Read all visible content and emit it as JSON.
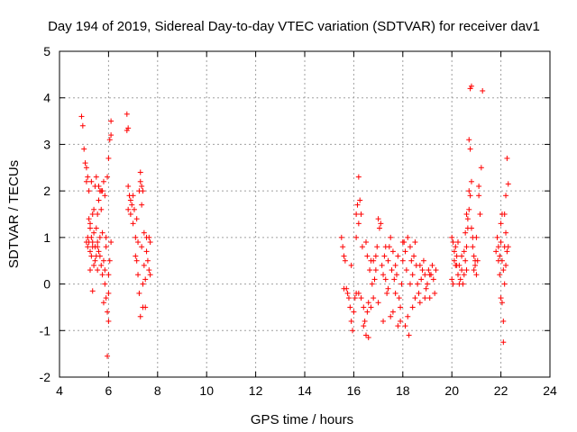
{
  "chart_data": {
    "type": "scatter",
    "title": "Day 194 of 2019, Sidereal Day-to-day VTEC variation (SDTVAR) for receiver dav1",
    "xlabel": "GPS time / hours",
    "ylabel": "SDTVAR / TECUs",
    "xlim": [
      4,
      24
    ],
    "ylim": [
      -2,
      5
    ],
    "x_ticks": [
      4,
      6,
      8,
      10,
      12,
      14,
      16,
      18,
      20,
      22,
      24
    ],
    "y_ticks": [
      -2,
      -1,
      0,
      1,
      2,
      3,
      4,
      5
    ],
    "grid": true,
    "marker": "+",
    "color": "#ff0000",
    "series": [
      {
        "name": "SDTVAR",
        "points": [
          [
            4.9,
            3.6
          ],
          [
            4.95,
            3.4
          ],
          [
            5.0,
            2.9
          ],
          [
            5.05,
            2.6
          ],
          [
            5.1,
            2.5
          ],
          [
            5.1,
            2.2
          ],
          [
            5.15,
            2.3
          ],
          [
            5.2,
            2.0
          ],
          [
            5.2,
            1.4
          ],
          [
            5.25,
            1.3
          ],
          [
            5.1,
            0.9
          ],
          [
            5.15,
            0.8
          ],
          [
            5.2,
            0.9
          ],
          [
            5.25,
            0.7
          ],
          [
            5.3,
            1.0
          ],
          [
            5.3,
            0.6
          ],
          [
            5.35,
            0.9
          ],
          [
            5.35,
            1.5
          ],
          [
            5.4,
            0.4
          ],
          [
            5.4,
            1.1
          ],
          [
            5.45,
            2.1
          ],
          [
            5.45,
            0.8
          ],
          [
            5.5,
            0.6
          ],
          [
            5.5,
            1.2
          ],
          [
            5.55,
            0.3
          ],
          [
            5.55,
            0.9
          ],
          [
            5.6,
            1.8
          ],
          [
            5.6,
            0.7
          ],
          [
            5.65,
            1.0
          ],
          [
            5.65,
            2.0
          ],
          [
            5.7,
            0.4
          ],
          [
            5.7,
            1.6
          ],
          [
            5.75,
            0.2
          ],
          [
            5.8,
            0.5
          ],
          [
            5.8,
            2.2
          ],
          [
            5.85,
            0.0
          ],
          [
            5.85,
            1.9
          ],
          [
            5.9,
            -0.3
          ],
          [
            5.9,
            0.8
          ],
          [
            5.95,
            -0.6
          ],
          [
            5.95,
            2.3
          ],
          [
            6.0,
            -0.8
          ],
          [
            6.0,
            0.2
          ],
          [
            6.05,
            0.5
          ],
          [
            6.05,
            3.1
          ],
          [
            6.1,
            3.2
          ],
          [
            6.1,
            3.5
          ],
          [
            6.1,
            0.9
          ],
          [
            6.0,
            2.7
          ],
          [
            5.4,
            1.6
          ],
          [
            5.3,
            2.2
          ],
          [
            5.5,
            2.3
          ],
          [
            5.6,
            2.1
          ],
          [
            5.7,
            2.0
          ],
          [
            5.25,
            0.3
          ],
          [
            5.35,
            -0.15
          ],
          [
            5.45,
            0.5
          ],
          [
            5.55,
            1.5
          ],
          [
            5.75,
            2.0
          ],
          [
            5.95,
            -1.55
          ],
          [
            5.15,
            1.0
          ],
          [
            5.25,
            1.2
          ],
          [
            5.35,
            0.8
          ],
          [
            5.55,
            0.8
          ],
          [
            5.65,
            0.6
          ],
          [
            5.75,
            1.1
          ],
          [
            5.85,
            0.3
          ],
          [
            5.9,
            1.0
          ],
          [
            6.0,
            -0.2
          ],
          [
            5.8,
            -0.4
          ],
          [
            6.75,
            3.65
          ],
          [
            6.8,
            3.35
          ],
          [
            6.75,
            3.3
          ],
          [
            6.8,
            2.1
          ],
          [
            6.85,
            1.9
          ],
          [
            6.8,
            1.6
          ],
          [
            6.9,
            1.8
          ],
          [
            6.9,
            1.5
          ],
          [
            6.95,
            1.7
          ],
          [
            7.0,
            1.9
          ],
          [
            7.0,
            1.3
          ],
          [
            7.05,
            1.6
          ],
          [
            7.1,
            1.0
          ],
          [
            7.1,
            0.6
          ],
          [
            7.15,
            0.5
          ],
          [
            7.15,
            1.4
          ],
          [
            7.2,
            0.9
          ],
          [
            7.2,
            0.2
          ],
          [
            7.25,
            2.0
          ],
          [
            7.25,
            -0.2
          ],
          [
            7.3,
            2.2
          ],
          [
            7.3,
            2.4
          ],
          [
            7.35,
            2.1
          ],
          [
            7.35,
            0.8
          ],
          [
            7.4,
            -0.5
          ],
          [
            7.4,
            0.0
          ],
          [
            7.45,
            1.1
          ],
          [
            7.45,
            0.4
          ],
          [
            7.5,
            0.1
          ],
          [
            7.5,
            -0.5
          ],
          [
            7.55,
            0.7
          ],
          [
            7.55,
            1.0
          ],
          [
            7.6,
            0.5
          ],
          [
            7.65,
            0.3
          ],
          [
            7.65,
            1.0
          ],
          [
            7.7,
            0.9
          ],
          [
            7.7,
            0.2
          ],
          [
            7.3,
            -0.7
          ],
          [
            7.4,
            2.0
          ],
          [
            7.35,
            1.7
          ],
          [
            15.5,
            1.0
          ],
          [
            15.55,
            0.8
          ],
          [
            15.6,
            0.6
          ],
          [
            15.65,
            0.5
          ],
          [
            15.6,
            -0.1
          ],
          [
            15.7,
            -0.1
          ],
          [
            15.75,
            -0.2
          ],
          [
            15.8,
            -0.3
          ],
          [
            15.85,
            -0.5
          ],
          [
            15.9,
            -0.8
          ],
          [
            15.95,
            -1.0
          ],
          [
            16.0,
            -0.6
          ],
          [
            16.05,
            -0.3
          ],
          [
            15.9,
            0.4
          ],
          [
            16.1,
            1.0
          ],
          [
            16.1,
            1.5
          ],
          [
            16.15,
            1.7
          ],
          [
            16.2,
            1.3
          ],
          [
            16.2,
            2.3
          ],
          [
            16.25,
            1.8
          ],
          [
            16.3,
            1.5
          ],
          [
            16.35,
            0.8
          ],
          [
            16.1,
            -0.2
          ],
          [
            16.2,
            -0.2
          ],
          [
            16.3,
            -0.3
          ],
          [
            16.4,
            -0.5
          ],
          [
            16.45,
            -0.8
          ],
          [
            16.5,
            -1.1
          ],
          [
            16.55,
            -0.6
          ],
          [
            16.6,
            -0.4
          ],
          [
            16.65,
            0.3
          ],
          [
            16.7,
            0.5
          ],
          [
            16.6,
            -1.15
          ],
          [
            16.5,
            0.9
          ],
          [
            16.55,
            0.6
          ],
          [
            16.75,
            0.0
          ],
          [
            16.8,
            -0.3
          ],
          [
            16.85,
            0.1
          ],
          [
            16.9,
            0.6
          ],
          [
            16.95,
            0.8
          ],
          [
            17.0,
            1.4
          ],
          [
            17.05,
            1.2
          ],
          [
            17.1,
            1.3
          ],
          [
            17.15,
            0.4
          ],
          [
            17.2,
            0.2
          ],
          [
            17.25,
            0.6
          ],
          [
            17.3,
            0.1
          ],
          [
            17.35,
            -0.2
          ],
          [
            17.4,
            0.5
          ],
          [
            17.45,
            0.8
          ],
          [
            17.5,
            1.0
          ],
          [
            17.55,
            0.3
          ],
          [
            17.6,
            -0.6
          ],
          [
            17.65,
            0.1
          ],
          [
            17.7,
            0.4
          ],
          [
            17.75,
            0.2
          ],
          [
            17.8,
            0.6
          ],
          [
            17.85,
            -0.3
          ],
          [
            17.9,
            -0.8
          ],
          [
            17.95,
            0.0
          ],
          [
            18.0,
            0.5
          ],
          [
            18.05,
            0.9
          ],
          [
            18.1,
            0.7
          ],
          [
            18.15,
            0.3
          ],
          [
            18.2,
            -0.7
          ],
          [
            18.25,
            -1.1
          ],
          [
            18.3,
            0.8
          ],
          [
            18.35,
            0.5
          ],
          [
            18.4,
            0.2
          ],
          [
            18.45,
            0.6
          ],
          [
            18.5,
            0.9
          ],
          [
            18.55,
            0.4
          ],
          [
            18.6,
            0.0
          ],
          [
            18.65,
            -0.2
          ],
          [
            18.7,
            -0.4
          ],
          [
            18.75,
            0.1
          ],
          [
            18.8,
            0.3
          ],
          [
            18.85,
            0.5
          ],
          [
            18.9,
            0.2
          ],
          [
            18.95,
            -0.1
          ],
          [
            19.0,
            0.0
          ],
          [
            19.05,
            0.3
          ],
          [
            19.1,
            -0.3
          ],
          [
            19.15,
            0.2
          ],
          [
            19.2,
            0.4
          ],
          [
            19.25,
            0.1
          ],
          [
            19.3,
            -0.2
          ],
          [
            19.35,
            0.3
          ],
          [
            17.2,
            -0.8
          ],
          [
            17.5,
            -0.7
          ],
          [
            17.8,
            -0.9
          ],
          [
            18.1,
            -0.9
          ],
          [
            18.4,
            -0.5
          ],
          [
            17.6,
            0.7
          ],
          [
            18.2,
            1.0
          ],
          [
            18.0,
            0.9
          ],
          [
            17.3,
            0.8
          ],
          [
            16.9,
            0.3
          ],
          [
            16.8,
            0.5
          ],
          [
            16.4,
            -0.9
          ],
          [
            17.0,
            -0.4
          ],
          [
            17.9,
            -0.5
          ],
          [
            18.5,
            -0.3
          ],
          [
            18.7,
            0.4
          ],
          [
            19.1,
            0.2
          ],
          [
            17.4,
            -0.1
          ],
          [
            18.3,
            0.0
          ],
          [
            16.7,
            -0.5
          ],
          [
            17.7,
            -0.2
          ],
          [
            18.9,
            -0.3
          ],
          [
            20.0,
            0.1
          ],
          [
            20.05,
            0.0
          ],
          [
            20.1,
            0.5
          ],
          [
            20.15,
            0.8
          ],
          [
            20.2,
            0.6
          ],
          [
            20.25,
            0.2
          ],
          [
            20.3,
            0.4
          ],
          [
            20.35,
            0.1
          ],
          [
            20.4,
            0.3
          ],
          [
            20.45,
            0.0
          ],
          [
            20.5,
            0.2
          ],
          [
            20.55,
            0.5
          ],
          [
            20.6,
            0.8
          ],
          [
            20.65,
            1.2
          ],
          [
            20.7,
            1.6
          ],
          [
            20.75,
            1.9
          ],
          [
            20.8,
            2.2
          ],
          [
            20.85,
            1.0
          ],
          [
            20.9,
            0.6
          ],
          [
            20.95,
            0.4
          ],
          [
            20.0,
            1.0
          ],
          [
            20.05,
            0.9
          ],
          [
            20.1,
            0.7
          ],
          [
            20.2,
            0.4
          ],
          [
            20.3,
            0.0
          ],
          [
            20.55,
            1.1
          ],
          [
            20.6,
            1.5
          ],
          [
            20.7,
            2.0
          ],
          [
            20.75,
            2.9
          ],
          [
            20.7,
            3.1
          ],
          [
            20.75,
            4.2
          ],
          [
            20.8,
            4.25
          ],
          [
            21.25,
            4.15
          ],
          [
            21.2,
            2.5
          ],
          [
            21.1,
            1.9
          ],
          [
            21.15,
            1.5
          ],
          [
            21.0,
            1.0
          ],
          [
            21.05,
            0.5
          ],
          [
            20.9,
            0.3
          ],
          [
            20.85,
            0.8
          ],
          [
            21.1,
            2.1
          ],
          [
            20.65,
            1.4
          ],
          [
            20.8,
            1.2
          ],
          [
            20.4,
            0.6
          ],
          [
            20.5,
            0.7
          ],
          [
            20.6,
            0.3
          ],
          [
            20.95,
            0.5
          ],
          [
            21.0,
            0.2
          ],
          [
            20.25,
            0.9
          ],
          [
            20.15,
            0.4
          ],
          [
            21.8,
            0.7
          ],
          [
            21.85,
            1.0
          ],
          [
            21.9,
            0.8
          ],
          [
            21.95,
            0.6
          ],
          [
            22.0,
            0.9
          ],
          [
            22.05,
            0.5
          ],
          [
            22.1,
            0.3
          ],
          [
            22.15,
            0.8
          ],
          [
            22.2,
            1.1
          ],
          [
            22.25,
            0.7
          ],
          [
            22.0,
            -0.3
          ],
          [
            22.05,
            -0.4
          ],
          [
            22.1,
            -0.8
          ],
          [
            22.1,
            -1.25
          ],
          [
            22.15,
            1.5
          ],
          [
            22.2,
            1.9
          ],
          [
            22.25,
            2.7
          ],
          [
            22.3,
            2.15
          ],
          [
            21.95,
            0.2
          ],
          [
            22.0,
            1.3
          ],
          [
            22.05,
            1.5
          ],
          [
            21.9,
            0.5
          ],
          [
            22.2,
            0.4
          ],
          [
            22.3,
            0.8
          ],
          [
            22.15,
            0.0
          ]
        ]
      }
    ]
  }
}
